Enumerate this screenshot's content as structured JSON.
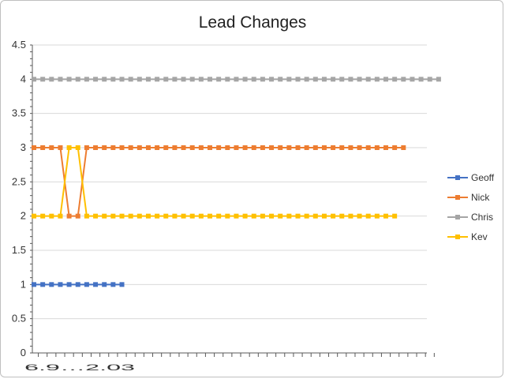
{
  "chart_data": {
    "type": "line",
    "title": "Lead Changes",
    "xlabel": "",
    "ylabel": "",
    "ylim": [
      0,
      4.5
    ],
    "yticks": [
      "0",
      "0.5",
      "1",
      "1.5",
      "2",
      "2.5",
      "3",
      "3.5",
      "4",
      "4.5"
    ],
    "x_tick_labels_visible": "6.9…2.03",
    "grid": "horizontal",
    "legend": "right",
    "series": [
      {
        "name": "Geoff",
        "color": "#4472c4",
        "values": [
          1,
          1,
          1,
          1,
          1,
          1,
          1,
          1,
          1,
          1,
          1
        ]
      },
      {
        "name": "Nick",
        "color": "#ed7d31",
        "values": [
          3,
          3,
          3,
          3,
          2,
          2,
          3,
          3,
          3,
          3,
          3,
          3,
          3,
          3,
          3,
          3,
          3,
          3,
          3,
          3,
          3,
          3,
          3,
          3,
          3,
          3,
          3,
          3,
          3,
          3,
          3,
          3,
          3,
          3,
          3,
          3,
          3,
          3,
          3,
          3,
          3,
          3,
          3
        ]
      },
      {
        "name": "Chris",
        "color": "#a5a5a5",
        "values": [
          4,
          4,
          4,
          4,
          4,
          4,
          4,
          4,
          4,
          4,
          4,
          4,
          4,
          4,
          4,
          4,
          4,
          4,
          4,
          4,
          4,
          4,
          4,
          4,
          4,
          4,
          4,
          4,
          4,
          4,
          4,
          4,
          4,
          4,
          4,
          4,
          4,
          4,
          4,
          4,
          4,
          4,
          4,
          4,
          4,
          4,
          4
        ]
      },
      {
        "name": "Kev",
        "color": "#ffc000",
        "values": [
          2,
          2,
          2,
          2,
          3,
          3,
          2,
          2,
          2,
          2,
          2,
          2,
          2,
          2,
          2,
          2,
          2,
          2,
          2,
          2,
          2,
          2,
          2,
          2,
          2,
          2,
          2,
          2,
          2,
          2,
          2,
          2,
          2,
          2,
          2,
          2,
          2,
          2,
          2,
          2,
          2,
          2
        ]
      }
    ]
  }
}
